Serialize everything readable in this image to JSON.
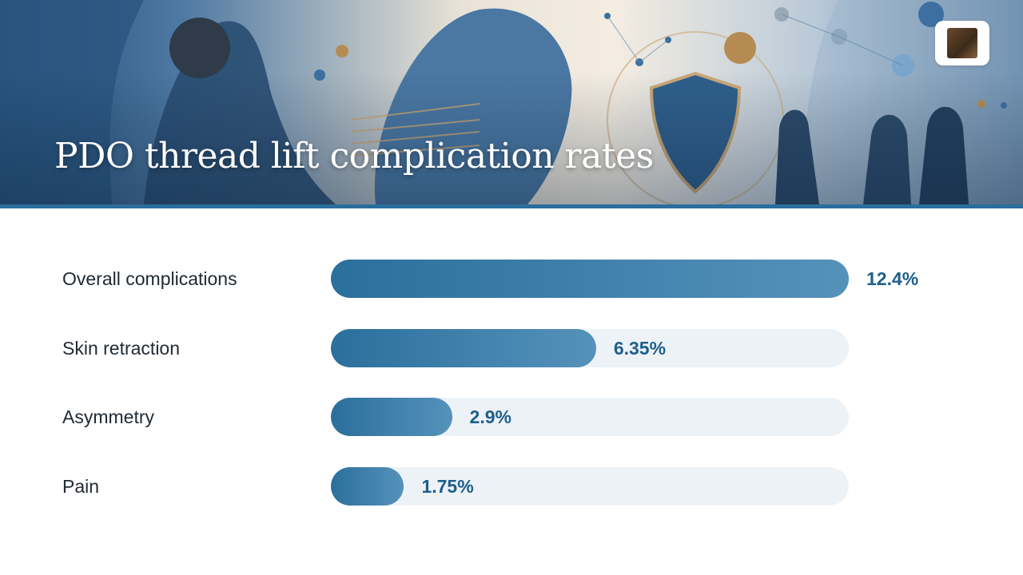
{
  "header": {
    "title": "PDO thread lift complication rates",
    "banner_image": "aesthetic-medicine-illustration",
    "logo": "brand-logo-icon"
  },
  "colors": {
    "bar": "#2b6f9c",
    "bar_light": "#5592ba",
    "track": "#edf2f7",
    "value_text": "#1e5f8c",
    "label_text": "#222a33",
    "accent_stripe": "#2a6e9e"
  },
  "chart_data": {
    "type": "bar",
    "orientation": "horizontal",
    "title": "PDO thread lift complication rates",
    "categories": [
      "Overall complications",
      "Skin retraction",
      "Asymmetry",
      "Pain"
    ],
    "values": [
      12.4,
      6.35,
      2.9,
      1.75
    ],
    "value_labels": [
      "12.4%",
      "6.35%",
      "2.9%",
      "1.75%"
    ],
    "unit": "%",
    "xlim": [
      0,
      12.4
    ],
    "grid": false,
    "legend": "none"
  }
}
